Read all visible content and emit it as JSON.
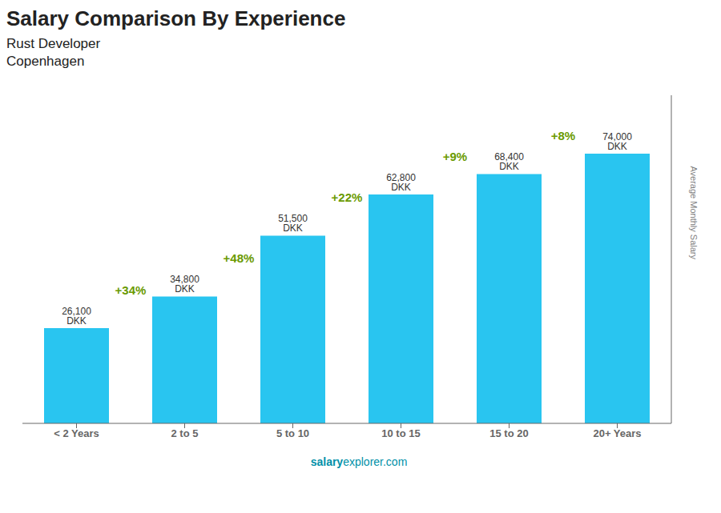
{
  "chart_data": {
    "type": "bar",
    "title": "Salary Comparison By Experience",
    "subtitle": [
      "Rust Developer",
      "Copenhagen"
    ],
    "ylabel": "Average Monthly Salary",
    "categories": [
      "< 2 Years",
      "2 to 5",
      "5 to 10",
      "10 to 15",
      "15 to 20",
      "20+ Years"
    ],
    "values": [
      26100,
      34800,
      51500,
      62800,
      68400,
      74000
    ],
    "value_labels": [
      "26,100 DKK",
      "34,800 DKK",
      "51,500 DKK",
      "62,800 DKK",
      "68,400 DKK",
      "74,000 DKK"
    ],
    "data_labels": true,
    "annotations": [
      "+34%",
      "+48%",
      "+22%",
      "+9%",
      "+8%"
    ],
    "footer": [
      "salary",
      "explorer.com"
    ],
    "color": "#29c5f0",
    "ylim": [
      0,
      90000
    ],
    "tick_labels": "x",
    "grid": false
  }
}
